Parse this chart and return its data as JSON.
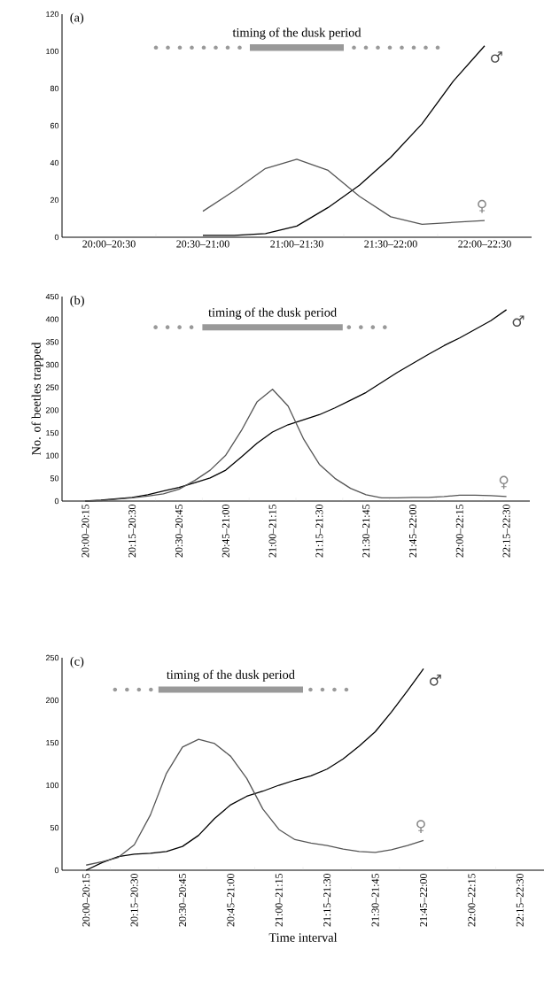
{
  "chart_data": [
    {
      "type": "line",
      "annotations": [
        "(a)",
        "timing of the dusk period"
      ],
      "ylim": [
        0,
        120
      ],
      "yticks": [
        0,
        20,
        40,
        60,
        80,
        100,
        120
      ],
      "categories": [
        null,
        "20:00–20:30",
        null,
        null,
        "20:30–21:00",
        null,
        null,
        "21:00–21:30",
        null,
        null,
        "21:30–22:00",
        null,
        null,
        "22:00–22:30",
        null
      ],
      "series": [
        {
          "name": "♂",
          "color": "#000000",
          "values": [
            null,
            null,
            null,
            null,
            1,
            1,
            2,
            6,
            16,
            28,
            43,
            61,
            84,
            103,
            null
          ]
        },
        {
          "name": "♀",
          "color": "#555555",
          "values": [
            null,
            null,
            null,
            null,
            14,
            25,
            37,
            42,
            36,
            22,
            11,
            7,
            8,
            9,
            null
          ]
        }
      ],
      "legend": false,
      "grid": false
    },
    {
      "type": "line",
      "annotations": [
        "(b)",
        "timing of the dusk period"
      ],
      "ylabel": "No. of beetles trapped",
      "ylim": [
        0,
        450
      ],
      "yticks": [
        0,
        50,
        100,
        150,
        200,
        250,
        300,
        350,
        400,
        450
      ],
      "categories": [
        null,
        "20:00–20:15",
        null,
        null,
        "20:15–20:30",
        null,
        null,
        "20:30–20:45",
        null,
        null,
        "20:45–21:00",
        null,
        null,
        "21:00–21:15",
        null,
        null,
        "21:15–21:30",
        null,
        null,
        "21:30–21:45",
        null,
        null,
        "21:45–22:00",
        null,
        null,
        "22:00–22:15",
        null,
        null,
        "22:15–22:30",
        null
      ],
      "series": [
        {
          "name": "♂",
          "color": "#000000",
          "values": [
            null,
            0,
            2,
            5,
            8,
            14,
            22,
            30,
            40,
            51,
            68,
            97,
            127,
            152,
            168,
            179,
            190,
            205,
            222,
            239,
            261,
            283,
            303,
            323,
            342,
            359,
            378,
            397,
            421,
            null
          ]
        },
        {
          "name": "♀",
          "color": "#555555",
          "values": [
            null,
            0,
            1,
            4,
            7,
            11,
            16,
            26,
            45,
            68,
            101,
            155,
            218,
            246,
            209,
            136,
            81,
            50,
            28,
            14,
            7,
            7,
            8,
            8,
            10,
            13,
            13,
            12,
            10,
            null
          ]
        }
      ],
      "legend": false,
      "grid": false
    },
    {
      "type": "line",
      "annotations": [
        "(c)",
        "timing of the dusk period"
      ],
      "xlabel": "Time interval",
      "ylim": [
        0,
        250
      ],
      "yticks": [
        0,
        50,
        100,
        150,
        200,
        250
      ],
      "categories": [
        null,
        "20:00–20:15",
        null,
        null,
        "20:15–20:30",
        null,
        null,
        "20:30–20:45",
        null,
        null,
        "20:45–21:00",
        null,
        null,
        "21:00–21:15",
        null,
        null,
        "21:15–21:30",
        null,
        null,
        "21:30–21:45",
        null,
        null,
        "21:45–22:00",
        null,
        null,
        "22:00–22:15",
        null,
        null,
        "22:15–22:30",
        null
      ],
      "series": [
        {
          "name": "♂",
          "color": "#000000",
          "values": [
            null,
            0,
            9,
            16,
            19,
            20,
            22,
            28,
            41,
            61,
            77,
            87,
            93,
            100,
            106,
            111,
            119,
            131,
            146,
            163,
            186,
            211,
            237,
            null,
            null,
            null,
            null,
            null,
            null,
            null
          ]
        },
        {
          "name": "♀",
          "color": "#555555",
          "values": [
            null,
            6,
            10,
            15,
            30,
            65,
            114,
            145,
            154,
            149,
            134,
            108,
            72,
            48,
            36,
            32,
            29,
            25,
            22,
            21,
            24,
            29,
            35,
            null,
            null,
            null,
            null,
            null,
            null,
            null
          ]
        }
      ],
      "legend": false,
      "grid": false
    }
  ]
}
